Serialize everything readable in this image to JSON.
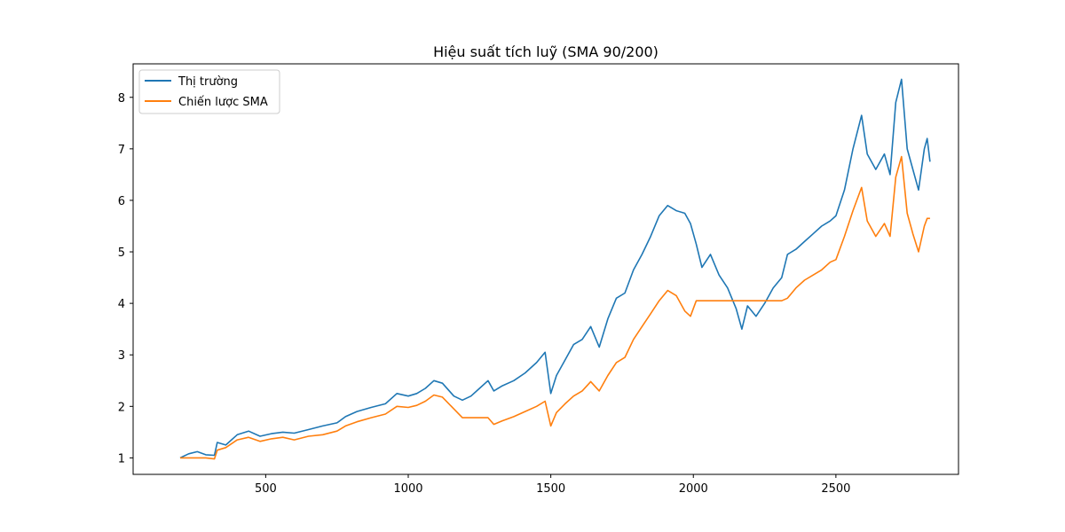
{
  "chart_data": {
    "type": "line",
    "title": "Hiệu suất tích luỹ (SMA 90/200)",
    "xlabel": "",
    "ylabel": "",
    "xlim": [
      35,
      2930
    ],
    "ylim": [
      0.68,
      8.65
    ],
    "xticks": [
      500,
      1000,
      1500,
      2000,
      2500
    ],
    "yticks": [
      1,
      2,
      3,
      4,
      5,
      6,
      7,
      8
    ],
    "grid": false,
    "legend_position": "top-left",
    "series": [
      {
        "name": "Thị trường",
        "color": "#1f77b4",
        "points": [
          [
            200,
            1.0
          ],
          [
            230,
            1.08
          ],
          [
            260,
            1.12
          ],
          [
            290,
            1.06
          ],
          [
            320,
            1.05
          ],
          [
            330,
            1.3
          ],
          [
            360,
            1.25
          ],
          [
            400,
            1.45
          ],
          [
            440,
            1.52
          ],
          [
            480,
            1.42
          ],
          [
            520,
            1.47
          ],
          [
            560,
            1.5
          ],
          [
            600,
            1.48
          ],
          [
            650,
            1.55
          ],
          [
            700,
            1.62
          ],
          [
            750,
            1.68
          ],
          [
            780,
            1.8
          ],
          [
            820,
            1.9
          ],
          [
            870,
            1.98
          ],
          [
            920,
            2.05
          ],
          [
            960,
            2.25
          ],
          [
            1000,
            2.2
          ],
          [
            1030,
            2.25
          ],
          [
            1060,
            2.35
          ],
          [
            1090,
            2.5
          ],
          [
            1120,
            2.45
          ],
          [
            1160,
            2.2
          ],
          [
            1190,
            2.12
          ],
          [
            1220,
            2.2
          ],
          [
            1250,
            2.35
          ],
          [
            1280,
            2.5
          ],
          [
            1300,
            2.3
          ],
          [
            1330,
            2.4
          ],
          [
            1370,
            2.5
          ],
          [
            1410,
            2.65
          ],
          [
            1450,
            2.85
          ],
          [
            1480,
            3.05
          ],
          [
            1500,
            2.25
          ],
          [
            1520,
            2.6
          ],
          [
            1550,
            2.9
          ],
          [
            1580,
            3.2
          ],
          [
            1610,
            3.3
          ],
          [
            1640,
            3.55
          ],
          [
            1670,
            3.15
          ],
          [
            1700,
            3.7
          ],
          [
            1730,
            4.1
          ],
          [
            1760,
            4.2
          ],
          [
            1790,
            4.65
          ],
          [
            1820,
            4.95
          ],
          [
            1850,
            5.3
          ],
          [
            1880,
            5.7
          ],
          [
            1910,
            5.9
          ],
          [
            1940,
            5.8
          ],
          [
            1970,
            5.75
          ],
          [
            1990,
            5.55
          ],
          [
            2010,
            5.15
          ],
          [
            2030,
            4.7
          ],
          [
            2060,
            4.95
          ],
          [
            2090,
            4.55
          ],
          [
            2120,
            4.3
          ],
          [
            2150,
            3.9
          ],
          [
            2170,
            3.5
          ],
          [
            2190,
            3.95
          ],
          [
            2220,
            3.75
          ],
          [
            2250,
            4.0
          ],
          [
            2280,
            4.3
          ],
          [
            2310,
            4.5
          ],
          [
            2330,
            4.95
          ],
          [
            2360,
            5.05
          ],
          [
            2390,
            5.2
          ],
          [
            2420,
            5.35
          ],
          [
            2450,
            5.5
          ],
          [
            2480,
            5.6
          ],
          [
            2500,
            5.7
          ],
          [
            2530,
            6.2
          ],
          [
            2560,
            7.0
          ],
          [
            2590,
            7.65
          ],
          [
            2610,
            6.9
          ],
          [
            2640,
            6.6
          ],
          [
            2670,
            6.9
          ],
          [
            2690,
            6.5
          ],
          [
            2710,
            7.9
          ],
          [
            2730,
            8.35
          ],
          [
            2750,
            7.0
          ],
          [
            2770,
            6.6
          ],
          [
            2790,
            6.2
          ],
          [
            2810,
            7.0
          ],
          [
            2820,
            7.2
          ],
          [
            2830,
            6.75
          ]
        ]
      },
      {
        "name": "Chiến lược SMA",
        "color": "#ff7f0e",
        "points": [
          [
            200,
            1.0
          ],
          [
            230,
            1.0
          ],
          [
            260,
            1.0
          ],
          [
            290,
            1.0
          ],
          [
            320,
            0.98
          ],
          [
            330,
            1.15
          ],
          [
            360,
            1.2
          ],
          [
            400,
            1.35
          ],
          [
            440,
            1.4
          ],
          [
            480,
            1.32
          ],
          [
            520,
            1.37
          ],
          [
            560,
            1.4
          ],
          [
            600,
            1.35
          ],
          [
            650,
            1.42
          ],
          [
            700,
            1.45
          ],
          [
            750,
            1.52
          ],
          [
            780,
            1.62
          ],
          [
            820,
            1.7
          ],
          [
            870,
            1.78
          ],
          [
            920,
            1.85
          ],
          [
            960,
            2.0
          ],
          [
            1000,
            1.98
          ],
          [
            1030,
            2.02
          ],
          [
            1060,
            2.1
          ],
          [
            1090,
            2.22
          ],
          [
            1120,
            2.18
          ],
          [
            1160,
            1.95
          ],
          [
            1190,
            1.78
          ],
          [
            1220,
            1.78
          ],
          [
            1250,
            1.78
          ],
          [
            1280,
            1.78
          ],
          [
            1300,
            1.65
          ],
          [
            1330,
            1.72
          ],
          [
            1370,
            1.8
          ],
          [
            1410,
            1.9
          ],
          [
            1450,
            2.0
          ],
          [
            1480,
            2.1
          ],
          [
            1500,
            1.62
          ],
          [
            1520,
            1.88
          ],
          [
            1550,
            2.05
          ],
          [
            1580,
            2.2
          ],
          [
            1610,
            2.3
          ],
          [
            1640,
            2.48
          ],
          [
            1670,
            2.3
          ],
          [
            1700,
            2.6
          ],
          [
            1730,
            2.85
          ],
          [
            1760,
            2.95
          ],
          [
            1790,
            3.3
          ],
          [
            1820,
            3.55
          ],
          [
            1850,
            3.8
          ],
          [
            1880,
            4.05
          ],
          [
            1910,
            4.25
          ],
          [
            1940,
            4.15
          ],
          [
            1970,
            3.85
          ],
          [
            1990,
            3.75
          ],
          [
            2010,
            4.05
          ],
          [
            2030,
            4.05
          ],
          [
            2060,
            4.05
          ],
          [
            2090,
            4.05
          ],
          [
            2120,
            4.05
          ],
          [
            2150,
            4.05
          ],
          [
            2170,
            4.05
          ],
          [
            2190,
            4.05
          ],
          [
            2220,
            4.05
          ],
          [
            2250,
            4.05
          ],
          [
            2280,
            4.05
          ],
          [
            2310,
            4.05
          ],
          [
            2330,
            4.1
          ],
          [
            2360,
            4.3
          ],
          [
            2390,
            4.45
          ],
          [
            2420,
            4.55
          ],
          [
            2450,
            4.65
          ],
          [
            2480,
            4.8
          ],
          [
            2500,
            4.85
          ],
          [
            2530,
            5.3
          ],
          [
            2560,
            5.8
          ],
          [
            2590,
            6.25
          ],
          [
            2610,
            5.6
          ],
          [
            2640,
            5.3
          ],
          [
            2670,
            5.55
          ],
          [
            2690,
            5.3
          ],
          [
            2710,
            6.45
          ],
          [
            2730,
            6.85
          ],
          [
            2750,
            5.75
          ],
          [
            2770,
            5.35
          ],
          [
            2790,
            5.0
          ],
          [
            2810,
            5.5
          ],
          [
            2820,
            5.65
          ],
          [
            2830,
            5.65
          ]
        ]
      }
    ]
  }
}
